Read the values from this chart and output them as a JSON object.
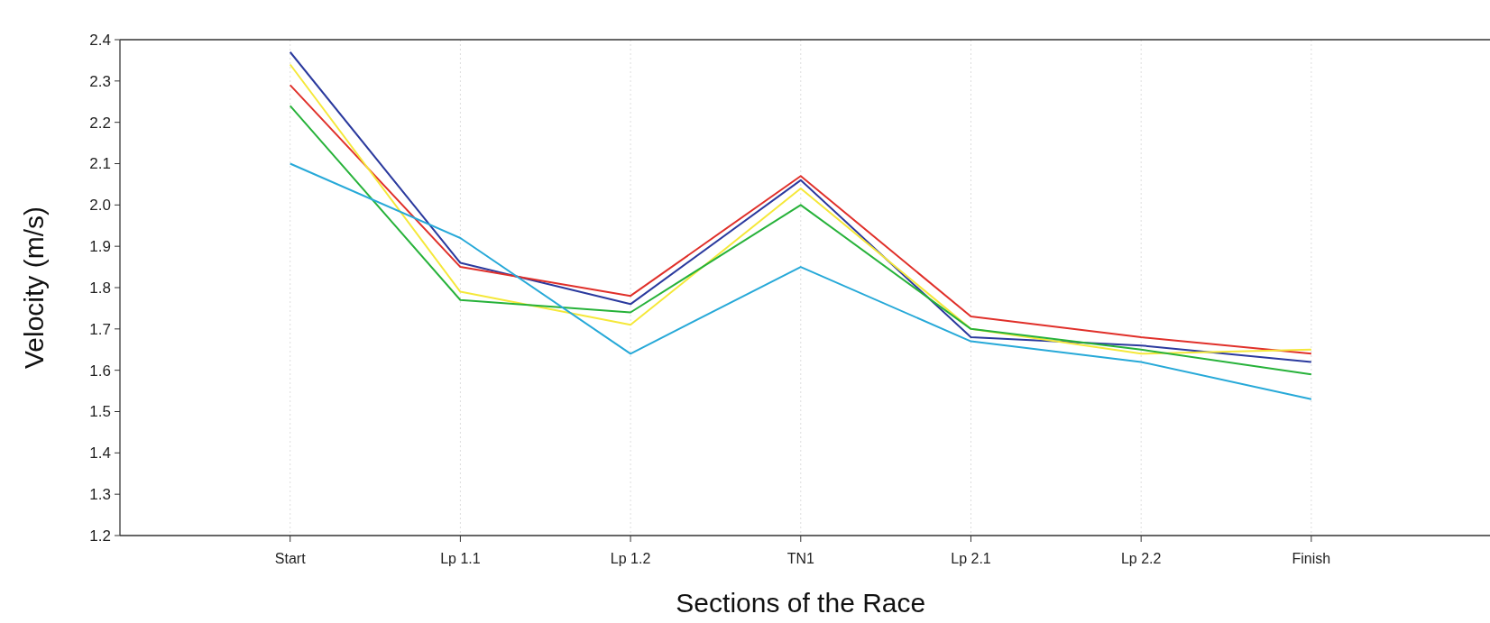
{
  "chart_data": {
    "type": "line",
    "xlabel": "Sections of the Race",
    "ylabel": "Velocity (m/s)",
    "categories": [
      "Start",
      "Lp 1.1",
      "Lp 1.2",
      "TN1",
      "Lp 2.1",
      "Lp 2.2",
      "Finish"
    ],
    "series": [
      {
        "color": "#2b3a9e",
        "values": [
          2.37,
          1.86,
          1.76,
          2.06,
          1.68,
          1.66,
          1.62
        ]
      },
      {
        "color": "#e0302a",
        "values": [
          2.29,
          1.85,
          1.78,
          2.07,
          1.73,
          1.68,
          1.64
        ]
      },
      {
        "color": "#f5e83a",
        "values": [
          2.34,
          1.79,
          1.71,
          2.04,
          1.7,
          1.64,
          1.65
        ]
      },
      {
        "color": "#27b23a",
        "values": [
          2.24,
          1.77,
          1.74,
          2.0,
          1.7,
          1.65,
          1.59
        ]
      },
      {
        "color": "#27a9d8",
        "values": [
          2.1,
          1.92,
          1.64,
          1.85,
          1.67,
          1.62,
          1.53
        ]
      }
    ],
    "ylim": [
      1.2,
      2.4
    ],
    "yticks": [
      {
        "value": 1.2,
        "label": "1.2"
      },
      1.3,
      1.4,
      1.5,
      1.6,
      1.7,
      1.8,
      1.9,
      {
        "value": 2.0,
        "label": "2.0"
      },
      2.1,
      2.2,
      2.3,
      2.4
    ],
    "grid": "x",
    "marker": "none",
    "line_style": "solid"
  }
}
